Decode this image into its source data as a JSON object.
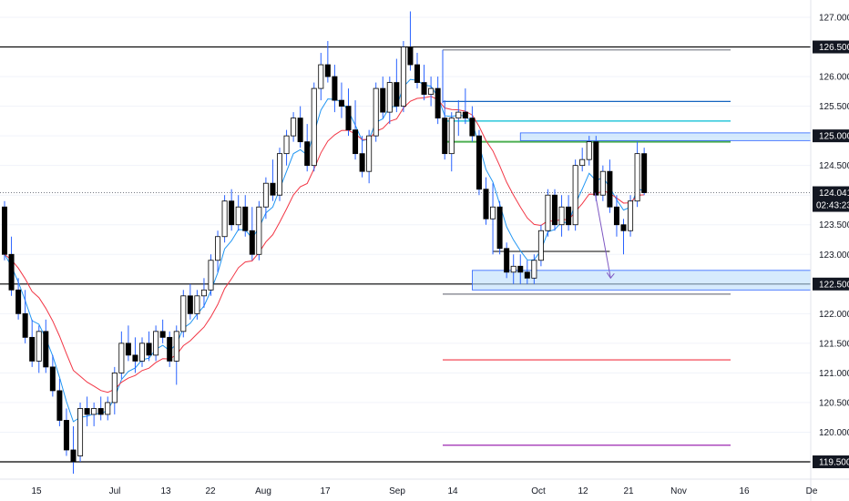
{
  "chart_data": {
    "type": "candlestick",
    "colors": {
      "up_body": "#ffffff",
      "down_body": "#000000",
      "wick": "#2962ff",
      "candle_border": "#000000",
      "ema_fast": "#2196f3",
      "ema_slow": "#f23645",
      "grid": "#f0f3fa",
      "axis_text": "#131722",
      "level_line": "#000000",
      "zone_fill": "#bbdefb",
      "zone_border": "#2962ff",
      "green_level": "#4caf50",
      "blue_level": "#1565c0",
      "cyan_level": "#00bcd4",
      "red_level": "#f23645",
      "purple_level": "#9c27b0",
      "projection_arrow": "#7e57c2"
    },
    "y_axis": {
      "ticks": [
        "127.000",
        "126.500",
        "126.000",
        "125.500",
        "125.000",
        "124.500",
        "124.000",
        "123.500",
        "123.000",
        "122.500",
        "122.000",
        "121.500",
        "121.000",
        "120.500",
        "120.000",
        "119.500"
      ],
      "ylim": [
        119.3,
        127.2
      ]
    },
    "x_axis": {
      "ticks": [
        "15",
        "Jul",
        "13",
        "22",
        "Aug",
        "17",
        "Sep",
        "14",
        "Oct",
        "12",
        "21",
        "Nov",
        "16",
        "De"
      ]
    },
    "price_tags": [
      {
        "label": "126.500",
        "value": 126.5,
        "bg": "#131722",
        "fg": "#ffffff"
      },
      {
        "label": "125.000",
        "value": 125.0,
        "bg": "#131722",
        "fg": "#ffffff"
      },
      {
        "label": "124.041",
        "sublabel": "02:43:23",
        "value": 124.041,
        "bg": "#131722",
        "fg": "#ffffff"
      },
      {
        "label": "122.500",
        "value": 122.5,
        "bg": "#131722",
        "fg": "#ffffff"
      },
      {
        "label": "119.500",
        "value": 119.5,
        "bg": "#131722",
        "fg": "#ffffff"
      }
    ],
    "current_price": 124.041,
    "horizontal_levels": [
      {
        "value": 126.5,
        "color": "#000000",
        "span": "full"
      },
      {
        "value": 122.5,
        "color": "#000000",
        "span": "full"
      },
      {
        "value": 119.5,
        "color": "#000000",
        "span": "full"
      },
      {
        "value": 126.45,
        "color": "#787b86",
        "span": "right"
      },
      {
        "value": 125.58,
        "color": "#1565c0",
        "span": "right"
      },
      {
        "value": 125.25,
        "color": "#00bcd4",
        "span": "right"
      },
      {
        "value": 124.9,
        "color": "#4caf50",
        "span": "right"
      },
      {
        "value": 122.33,
        "color": "#787b86",
        "span": "right"
      },
      {
        "value": 121.22,
        "color": "#f23645",
        "span": "right"
      },
      {
        "value": 119.78,
        "color": "#9c27b0",
        "span": "right"
      }
    ],
    "zones": [
      {
        "top": 125.05,
        "bottom": 124.92,
        "start_index": 75
      },
      {
        "top": 122.73,
        "bottom": 122.4,
        "start_index": 68
      }
    ],
    "support_line": {
      "value": 123.05,
      "start_index": 71,
      "end_index": 88
    },
    "projection": {
      "from_index": 84,
      "from_value": 124.04,
      "to_index": 86,
      "to_value": 122.6
    },
    "ohlc": [
      [
        123.8,
        123.9,
        122.9,
        123.0
      ],
      [
        123.0,
        123.3,
        122.3,
        122.4
      ],
      [
        122.4,
        122.6,
        121.9,
        122.0
      ],
      [
        122.0,
        122.4,
        121.5,
        121.6
      ],
      [
        121.6,
        121.9,
        121.1,
        121.2
      ],
      [
        121.2,
        121.8,
        121.0,
        121.7
      ],
      [
        121.7,
        121.9,
        121.0,
        121.1
      ],
      [
        121.1,
        121.3,
        120.6,
        120.7
      ],
      [
        120.7,
        120.9,
        120.1,
        120.2
      ],
      [
        120.2,
        120.4,
        119.6,
        119.7
      ],
      [
        119.7,
        120.1,
        119.3,
        119.5
      ],
      [
        119.6,
        120.5,
        119.5,
        120.4
      ],
      [
        120.4,
        120.6,
        120.1,
        120.3
      ],
      [
        120.3,
        120.5,
        120.1,
        120.4
      ],
      [
        120.4,
        120.6,
        120.2,
        120.3
      ],
      [
        120.3,
        120.6,
        120.2,
        120.5
      ],
      [
        120.5,
        121.1,
        120.3,
        121.0
      ],
      [
        121.0,
        121.7,
        120.9,
        121.5
      ],
      [
        121.5,
        121.8,
        121.2,
        121.3
      ],
      [
        121.3,
        121.6,
        121.0,
        121.2
      ],
      [
        121.2,
        121.6,
        121.1,
        121.5
      ],
      [
        121.5,
        121.7,
        121.2,
        121.3
      ],
      [
        121.3,
        121.8,
        121.2,
        121.7
      ],
      [
        121.7,
        121.9,
        121.5,
        121.6
      ],
      [
        121.6,
        121.7,
        121.1,
        121.2
      ],
      [
        121.2,
        121.8,
        120.8,
        121.7
      ],
      [
        121.7,
        122.4,
        121.6,
        122.3
      ],
      [
        122.3,
        122.5,
        121.9,
        122.0
      ],
      [
        122.0,
        122.4,
        121.9,
        122.3
      ],
      [
        122.3,
        122.6,
        122.1,
        122.4
      ],
      [
        122.4,
        123.0,
        122.3,
        122.9
      ],
      [
        122.9,
        123.4,
        122.7,
        123.3
      ],
      [
        123.3,
        124.0,
        123.2,
        123.9
      ],
      [
        123.9,
        124.1,
        123.4,
        123.5
      ],
      [
        123.5,
        124.0,
        123.4,
        123.8
      ],
      [
        123.8,
        124.0,
        123.3,
        123.4
      ],
      [
        123.4,
        123.8,
        122.9,
        123.0
      ],
      [
        123.0,
        123.9,
        122.9,
        123.8
      ],
      [
        123.8,
        124.3,
        123.6,
        124.2
      ],
      [
        124.2,
        124.6,
        123.9,
        124.0
      ],
      [
        124.0,
        124.8,
        123.9,
        124.7
      ],
      [
        124.7,
        125.1,
        124.5,
        125.0
      ],
      [
        125.0,
        125.4,
        124.9,
        125.3
      ],
      [
        125.3,
        125.5,
        124.8,
        124.9
      ],
      [
        124.9,
        125.2,
        124.4,
        124.5
      ],
      [
        124.5,
        125.9,
        124.4,
        125.8
      ],
      [
        125.8,
        126.4,
        125.6,
        126.2
      ],
      [
        126.2,
        126.6,
        125.9,
        126.0
      ],
      [
        126.0,
        126.2,
        125.4,
        125.6
      ],
      [
        125.6,
        125.9,
        125.3,
        125.5
      ],
      [
        125.5,
        125.8,
        125.0,
        125.1
      ],
      [
        125.1,
        125.6,
        124.6,
        124.7
      ],
      [
        124.7,
        125.0,
        124.3,
        124.4
      ],
      [
        124.4,
        125.1,
        124.2,
        125.0
      ],
      [
        125.0,
        125.9,
        124.9,
        125.8
      ],
      [
        125.8,
        126.0,
        125.3,
        125.4
      ],
      [
        125.4,
        126.0,
        125.2,
        125.9
      ],
      [
        125.9,
        126.3,
        125.4,
        125.5
      ],
      [
        125.5,
        126.6,
        125.4,
        126.5
      ],
      [
        126.5,
        127.1,
        126.1,
        126.2
      ],
      [
        126.2,
        126.4,
        125.8,
        125.9
      ],
      [
        125.9,
        126.2,
        125.6,
        125.7
      ],
      [
        125.7,
        126.0,
        125.5,
        125.8
      ],
      [
        125.8,
        126.0,
        125.2,
        125.3
      ],
      [
        125.3,
        125.6,
        124.6,
        124.7
      ],
      [
        124.7,
        125.4,
        124.4,
        125.3
      ],
      [
        125.3,
        125.6,
        125.0,
        125.4
      ],
      [
        125.4,
        125.8,
        125.2,
        125.3
      ],
      [
        125.3,
        125.5,
        124.9,
        125.0
      ],
      [
        125.0,
        125.1,
        124.0,
        124.1
      ],
      [
        124.1,
        124.3,
        123.5,
        123.6
      ],
      [
        123.6,
        124.2,
        123.0,
        123.8
      ],
      [
        123.8,
        123.9,
        123.0,
        123.1
      ],
      [
        123.1,
        123.2,
        122.6,
        122.7
      ],
      [
        122.7,
        123.0,
        122.5,
        122.8
      ],
      [
        122.8,
        123.0,
        122.5,
        122.7
      ],
      [
        122.7,
        122.9,
        122.5,
        122.6
      ],
      [
        122.6,
        123.0,
        122.5,
        122.9
      ],
      [
        122.9,
        123.5,
        122.8,
        123.4
      ],
      [
        123.4,
        124.1,
        123.3,
        124.0
      ],
      [
        124.0,
        124.1,
        123.4,
        123.5
      ],
      [
        123.5,
        124.0,
        123.3,
        123.8
      ],
      [
        123.8,
        124.0,
        123.4,
        123.5
      ],
      [
        123.5,
        124.6,
        123.4,
        124.5
      ],
      [
        124.5,
        124.8,
        124.4,
        124.6
      ],
      [
        124.6,
        125.0,
        124.5,
        124.9
      ],
      [
        124.9,
        125.0,
        123.9,
        124.0
      ],
      [
        124.0,
        124.5,
        123.9,
        124.4
      ],
      [
        124.4,
        124.6,
        123.7,
        123.8
      ],
      [
        123.8,
        124.0,
        123.3,
        123.5
      ],
      [
        123.5,
        123.6,
        123.0,
        123.4
      ],
      [
        123.4,
        124.0,
        123.3,
        123.9
      ],
      [
        123.9,
        124.9,
        123.8,
        124.7
      ],
      [
        124.7,
        124.8,
        124.0,
        124.041
      ]
    ]
  }
}
